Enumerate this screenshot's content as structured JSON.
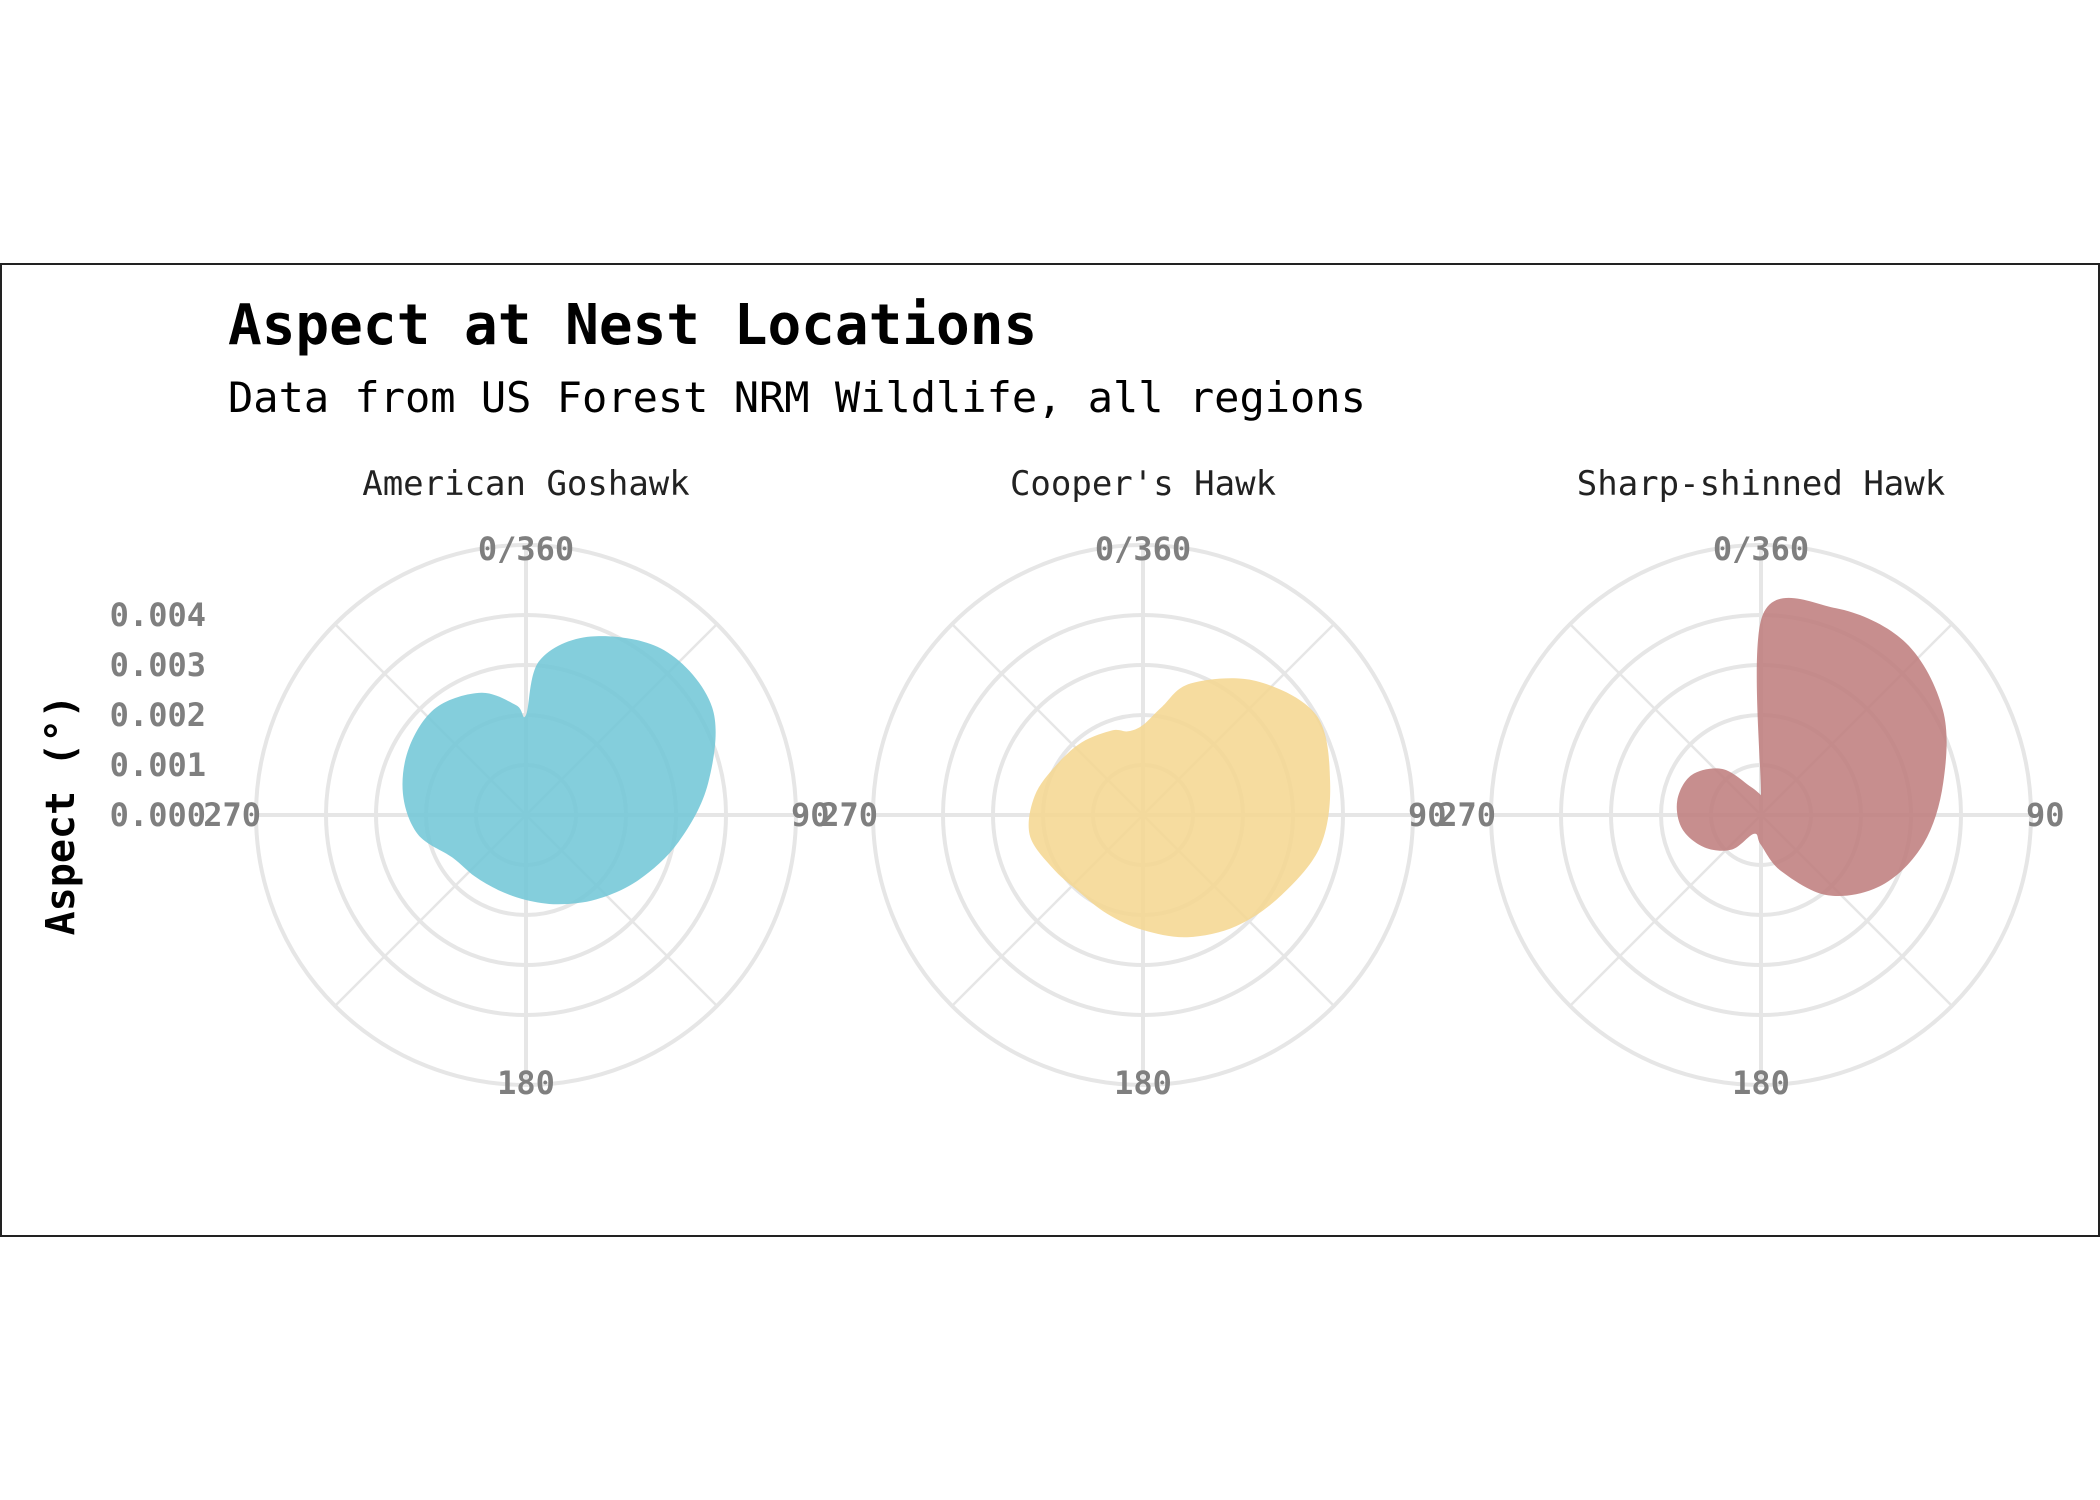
{
  "chart_data": {
    "type": "area",
    "coord": "polar",
    "title": "Aspect at Nest Locations",
    "subtitle": "Data from US Forest NRM Wildlife, all regions",
    "ylabel": "Aspect (°)",
    "theta_ticks": [
      "0/360",
      "90",
      "180",
      "270"
    ],
    "r_ticks": [
      "0.000",
      "0.001",
      "0.002",
      "0.003",
      "0.004"
    ],
    "rlim": [
      0,
      0.0055
    ],
    "panels": [
      {
        "name": "American Goshawk",
        "color": "#6ec6d6",
        "theta": [
          0,
          5,
          20,
          40,
          60,
          80,
          100,
          120,
          140,
          160,
          180,
          200,
          220,
          240,
          260,
          280,
          300,
          320,
          340,
          355
        ],
        "density": [
          0.002,
          0.0031,
          0.0038,
          0.0043,
          0.0043,
          0.0037,
          0.0031,
          0.0026,
          0.0022,
          0.0019,
          0.0017,
          0.0016,
          0.0016,
          0.0017,
          0.0022,
          0.0025,
          0.0027,
          0.0028,
          0.0026,
          0.0022
        ]
      },
      {
        "name": "Cooper's Hawk",
        "color": "#f5d68e",
        "theta": [
          0,
          10,
          20,
          40,
          60,
          80,
          100,
          120,
          140,
          160,
          180,
          200,
          220,
          240,
          260,
          280,
          300,
          320,
          340,
          350
        ],
        "density": [
          0.0018,
          0.0022,
          0.0028,
          0.0035,
          0.004,
          0.0038,
          0.0036,
          0.0032,
          0.0029,
          0.0026,
          0.0023,
          0.0021,
          0.002,
          0.0021,
          0.0023,
          0.0022,
          0.002,
          0.0019,
          0.0018,
          0.0017
        ]
      },
      {
        "name": "Sharp-shinned Hawk",
        "color": "#bd7a7a",
        "theta": [
          0,
          0.5,
          20,
          40,
          60,
          80,
          100,
          120,
          140,
          160,
          180,
          200,
          220,
          240,
          260,
          280,
          300,
          320,
          340,
          359.5
        ],
        "density": [
          0.0004,
          0.004,
          0.0044,
          0.0045,
          0.0042,
          0.0037,
          0.0033,
          0.0028,
          0.0021,
          0.0012,
          0.0006,
          0.0004,
          0.0009,
          0.0013,
          0.0016,
          0.0017,
          0.0016,
          0.0012,
          0.0006,
          0.0004
        ]
      }
    ]
  }
}
